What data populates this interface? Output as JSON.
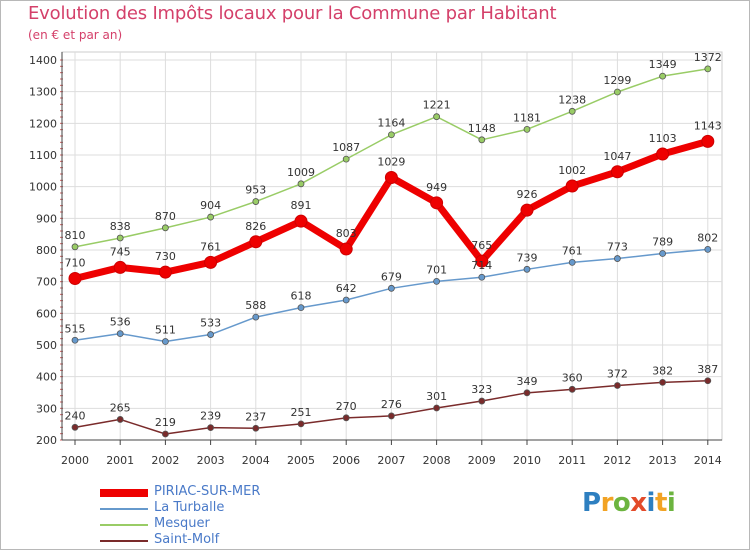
{
  "header": {
    "title": "Evolution des Impôts locaux pour la Commune par Habitant",
    "subtitle": "(en € et par an)"
  },
  "logo": {
    "text": "Proxiti",
    "letters": [
      "P",
      "r",
      "o",
      "x",
      "i",
      "t",
      "i"
    ],
    "colors": [
      "#2e7fc0",
      "#f2a324",
      "#6cb43f",
      "#e34b2a",
      "#2e7fc0",
      "#f2a324",
      "#6cb43f"
    ]
  },
  "chart_data": {
    "type": "line",
    "x": [
      "2000",
      "2001",
      "2002",
      "2003",
      "2004",
      "2005",
      "2006",
      "2007",
      "2008",
      "2009",
      "2010",
      "2011",
      "2012",
      "2013",
      "2014"
    ],
    "ylim": [
      200,
      1400
    ],
    "yticks": [
      "200",
      "300",
      "400",
      "500",
      "600",
      "700",
      "800",
      "900",
      "1000",
      "1100",
      "1200",
      "1300",
      "1400"
    ],
    "grid": true,
    "legend_position": "bottom-left",
    "series": [
      {
        "name": "PIRIAC-SUR-MER",
        "color": "#ee0000",
        "width": 7,
        "marker": 6,
        "values": [
          710,
          745,
          730,
          761,
          826,
          891,
          803,
          1029,
          949,
          765,
          926,
          1002,
          1047,
          1103,
          1143
        ]
      },
      {
        "name": "La Turballe",
        "color": "#6699cc",
        "width": 1.5,
        "marker": 3,
        "values": [
          515,
          536,
          511,
          533,
          588,
          618,
          642,
          679,
          701,
          714,
          739,
          761,
          773,
          789,
          802
        ]
      },
      {
        "name": "Mesquer",
        "color": "#99cc66",
        "width": 1.5,
        "marker": 3,
        "values": [
          810,
          838,
          870,
          904,
          953,
          1009,
          1087,
          1164,
          1221,
          1148,
          1181,
          1238,
          1299,
          1349,
          1372
        ]
      },
      {
        "name": "Saint-Molf",
        "color": "#7a2b2b",
        "width": 1.5,
        "marker": 3,
        "values": [
          240,
          265,
          219,
          239,
          237,
          251,
          270,
          276,
          301,
          323,
          349,
          360,
          372,
          382,
          387
        ]
      }
    ]
  }
}
